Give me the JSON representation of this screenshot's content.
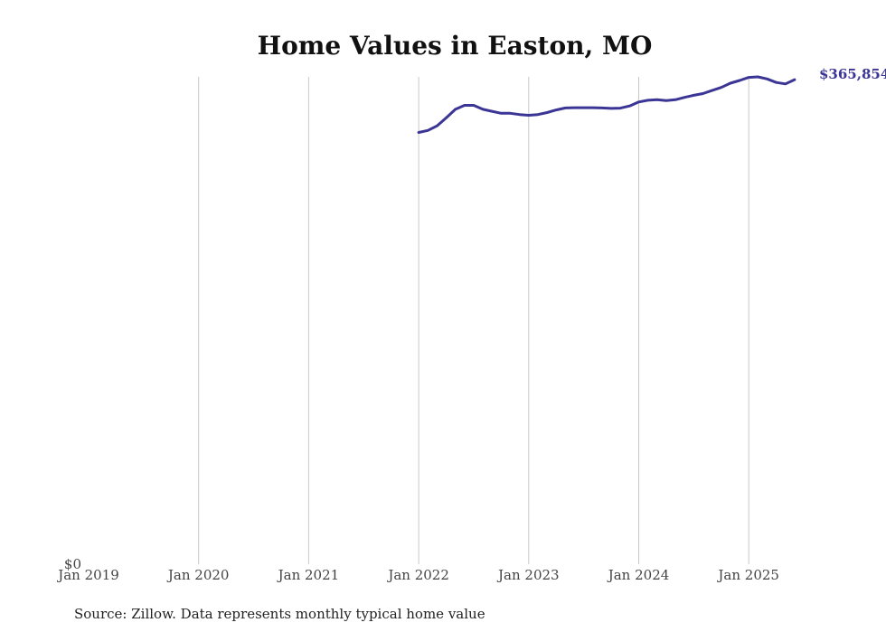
{
  "chart_data": {
    "type": "line",
    "title": "Home Values in Easton, MO",
    "xlabel": "",
    "ylabel": "",
    "x_ticks": [
      "Jan 2019",
      "Jan 2020",
      "Jan 2021",
      "Jan 2022",
      "Jan 2023",
      "Jan 2024",
      "Jan 2025"
    ],
    "y_ticks": [
      "$0"
    ],
    "ylim": [
      0,
      368000
    ],
    "xlim": [
      "2019-01",
      "2025-09"
    ],
    "grid": "vertical",
    "line_color": "#3b3596",
    "series": [
      {
        "x": [
          "2022-01",
          "2022-02",
          "2022-03",
          "2022-04",
          "2022-05",
          "2022-06",
          "2022-07",
          "2022-08",
          "2022-09",
          "2022-10",
          "2022-11",
          "2022-12",
          "2023-01",
          "2023-02",
          "2023-03",
          "2023-04",
          "2023-05",
          "2023-06",
          "2023-07",
          "2023-08",
          "2023-09",
          "2023-10",
          "2023-11",
          "2023-12",
          "2024-01",
          "2024-02",
          "2024-03",
          "2024-04",
          "2024-05",
          "2024-06",
          "2024-07",
          "2024-08",
          "2024-09",
          "2024-10",
          "2024-11",
          "2024-12",
          "2025-01",
          "2025-02",
          "2025-03",
          "2025-04",
          "2025-05",
          "2025-06"
        ],
        "values": [
          326000,
          327500,
          331000,
          337000,
          343500,
          346500,
          346500,
          343500,
          342000,
          340500,
          340500,
          339500,
          339000,
          339500,
          341000,
          343000,
          344500,
          344700,
          344700,
          344700,
          344500,
          344200,
          344400,
          346000,
          349000,
          350300,
          350700,
          350100,
          350700,
          352500,
          354100,
          355400,
          357700,
          360000,
          363200,
          365300,
          367600,
          368000,
          366400,
          363800,
          362700,
          365854
        ]
      }
    ],
    "end_label": "$365,854",
    "source": "Source: Zillow. Data represents monthly typical home value"
  }
}
